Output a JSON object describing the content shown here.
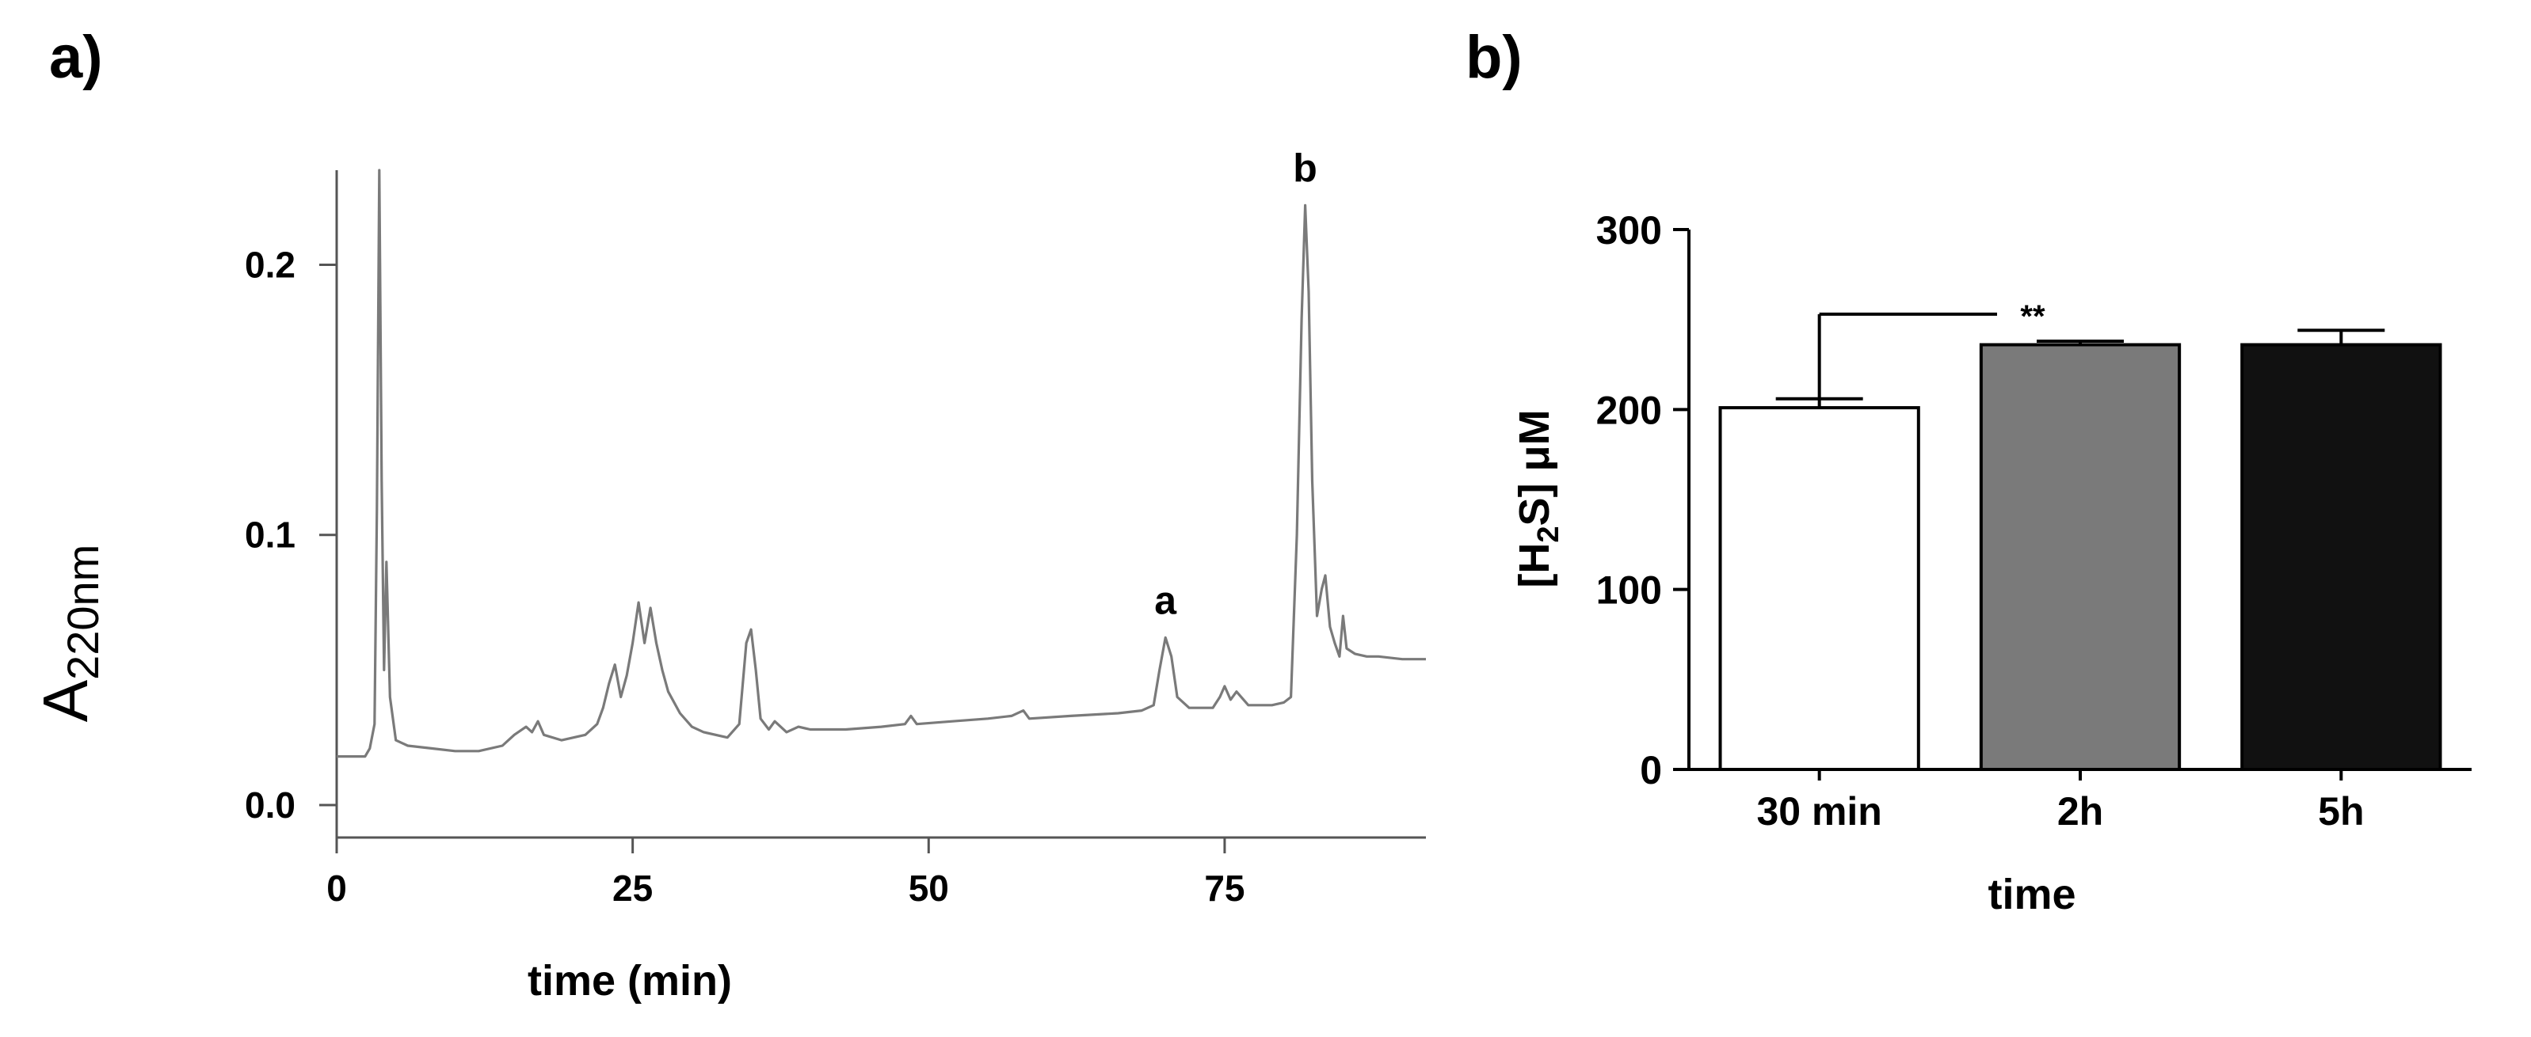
{
  "chart_data": [
    {
      "panel": "a)",
      "type": "line",
      "xlabel": "time (min)",
      "ylabel": "A",
      "ylabel_sub": "220nm",
      "xlim": [
        0,
        92
      ],
      "ylim": [
        -0.012,
        0.235
      ],
      "x_ticks": [
        0,
        25,
        50,
        75
      ],
      "y_ticks": [
        0.0,
        0.1,
        0.2
      ],
      "x_tick_labels": [
        "0",
        "25",
        "50",
        "75"
      ],
      "y_tick_labels": [
        "0.0",
        "0.1",
        "0.2"
      ],
      "line_color": "#7a7a7a",
      "series": [
        {
          "points": [
            [
              0,
              0.018
            ],
            [
              2.4,
              0.018
            ],
            [
              2.8,
              0.021
            ],
            [
              3.2,
              0.03
            ],
            [
              3.4,
              0.11
            ],
            [
              3.6,
              0.235
            ],
            [
              3.8,
              0.12
            ],
            [
              4.0,
              0.05
            ],
            [
              4.2,
              0.09
            ],
            [
              4.5,
              0.04
            ],
            [
              5,
              0.024
            ],
            [
              6,
              0.022
            ],
            [
              8,
              0.021
            ],
            [
              10,
              0.02
            ],
            [
              12,
              0.02
            ],
            [
              14,
              0.022
            ],
            [
              15,
              0.026
            ],
            [
              16,
              0.029
            ],
            [
              16.5,
              0.027
            ],
            [
              17,
              0.031
            ],
            [
              17.5,
              0.026
            ],
            [
              19,
              0.024
            ],
            [
              21,
              0.026
            ],
            [
              22,
              0.03
            ],
            [
              22.5,
              0.036
            ],
            [
              23,
              0.045
            ],
            [
              23.5,
              0.052
            ],
            [
              24,
              0.04
            ],
            [
              24.5,
              0.048
            ],
            [
              25,
              0.06
            ],
            [
              25.5,
              0.075
            ],
            [
              26,
              0.06
            ],
            [
              26.5,
              0.073
            ],
            [
              27,
              0.06
            ],
            [
              27.5,
              0.05
            ],
            [
              28,
              0.042
            ],
            [
              29,
              0.034
            ],
            [
              30,
              0.029
            ],
            [
              31,
              0.027
            ],
            [
              33,
              0.025
            ],
            [
              34,
              0.03
            ],
            [
              34.6,
              0.06
            ],
            [
              35,
              0.065
            ],
            [
              35.4,
              0.05
            ],
            [
              35.8,
              0.032
            ],
            [
              36.5,
              0.028
            ],
            [
              37,
              0.031
            ],
            [
              38,
              0.027
            ],
            [
              39,
              0.029
            ],
            [
              40,
              0.028
            ],
            [
              43,
              0.028
            ],
            [
              46,
              0.029
            ],
            [
              48,
              0.03
            ],
            [
              48.5,
              0.033
            ],
            [
              49,
              0.03
            ],
            [
              52,
              0.031
            ],
            [
              55,
              0.032
            ],
            [
              57,
              0.033
            ],
            [
              58,
              0.035
            ],
            [
              58.5,
              0.032
            ],
            [
              62,
              0.033
            ],
            [
              66,
              0.034
            ],
            [
              68,
              0.035
            ],
            [
              69,
              0.037
            ],
            [
              69.5,
              0.05
            ],
            [
              70,
              0.062
            ],
            [
              70.5,
              0.055
            ],
            [
              71,
              0.04
            ],
            [
              72,
              0.036
            ],
            [
              74,
              0.036
            ],
            [
              74.6,
              0.04
            ],
            [
              75,
              0.044
            ],
            [
              75.5,
              0.039
            ],
            [
              76,
              0.042
            ],
            [
              77,
              0.037
            ],
            [
              79,
              0.037
            ],
            [
              80,
              0.038
            ],
            [
              80.6,
              0.04
            ],
            [
              81.1,
              0.1
            ],
            [
              81.5,
              0.18
            ],
            [
              81.8,
              0.222
            ],
            [
              82.1,
              0.19
            ],
            [
              82.4,
              0.12
            ],
            [
              82.8,
              0.07
            ],
            [
              83.2,
              0.08
            ],
            [
              83.5,
              0.085
            ],
            [
              83.9,
              0.066
            ],
            [
              84.3,
              0.06
            ],
            [
              84.7,
              0.055
            ],
            [
              85,
              0.07
            ],
            [
              85.3,
              0.058
            ],
            [
              86,
              0.056
            ],
            [
              87,
              0.055
            ],
            [
              88,
              0.055
            ],
            [
              90,
              0.054
            ],
            [
              92,
              0.054
            ]
          ]
        }
      ],
      "annotations": [
        {
          "text": "a",
          "x": 70,
          "y": 0.062
        },
        {
          "text": "b",
          "x": 81.8,
          "y": 0.222
        }
      ]
    },
    {
      "panel": "b)",
      "type": "bar",
      "xlabel": "time",
      "ylabel_parts": [
        "[H",
        "2",
        "S] μM"
      ],
      "ylim": [
        0,
        300
      ],
      "y_ticks": [
        0,
        100,
        200,
        300
      ],
      "y_tick_labels": [
        "0",
        "100",
        "200",
        "300"
      ],
      "categories": [
        "30 min",
        "2h",
        "5h"
      ],
      "values": [
        201,
        236,
        236
      ],
      "errors": [
        5,
        2,
        8
      ],
      "colors": [
        "#ffffff",
        "#7a7a7a",
        "#111111"
      ],
      "significance": {
        "from": 0,
        "to": 1,
        "y": 253,
        "label": "**"
      }
    }
  ]
}
